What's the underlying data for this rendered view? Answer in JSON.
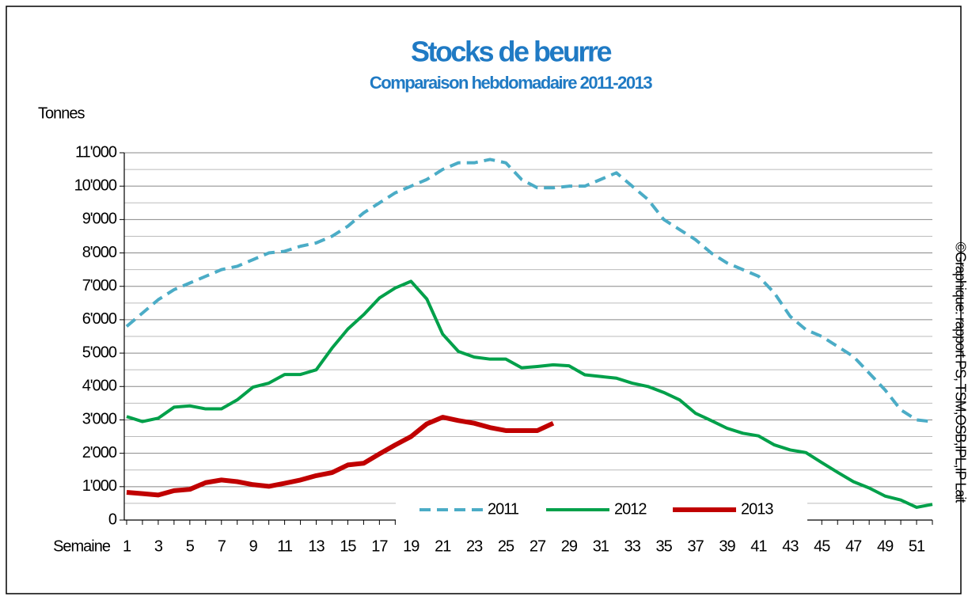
{
  "chart_data": {
    "type": "line",
    "title": "Stocks de beurre",
    "subtitle": "Comparaison hebdomadaire 2011-2013",
    "y_label": "Tonnes",
    "x_label": "Semaine",
    "source": "©Graphique: rapport PS, TSM,OSB,IPL,IP Lait",
    "x": [
      1,
      2,
      3,
      4,
      5,
      6,
      7,
      8,
      9,
      10,
      11,
      12,
      13,
      14,
      15,
      16,
      17,
      18,
      19,
      20,
      21,
      22,
      23,
      24,
      25,
      26,
      27,
      28,
      29,
      30,
      31,
      32,
      33,
      34,
      35,
      36,
      37,
      38,
      39,
      40,
      41,
      42,
      43,
      44,
      45,
      46,
      47,
      48,
      49,
      50,
      51,
      52
    ],
    "xlim": [
      1,
      52
    ],
    "xticks": [
      1,
      3,
      5,
      7,
      9,
      11,
      13,
      15,
      17,
      19,
      21,
      23,
      25,
      27,
      29,
      31,
      33,
      35,
      37,
      39,
      41,
      43,
      45,
      47,
      49,
      51
    ],
    "ylim": [
      0,
      11000
    ],
    "yticks": [
      0,
      {
        "value": 1000,
        "label": "1'000"
      },
      {
        "value": 2000,
        "label": "2'000"
      },
      {
        "value": 3000,
        "label": "3'000"
      },
      {
        "value": 4000,
        "label": "4'000"
      },
      {
        "value": 5000,
        "label": "5'000"
      },
      {
        "value": 6000,
        "label": "6'000"
      },
      {
        "value": 7000,
        "label": "7'000"
      },
      {
        "value": 8000,
        "label": "8'000"
      },
      {
        "value": 9000,
        "label": "9'000"
      },
      {
        "value": 10000,
        "label": "10'000"
      },
      {
        "value": 11000,
        "label": "11'000"
      }
    ],
    "y_minor_ticks": [
      500,
      1500,
      2500,
      3500,
      4500,
      5500,
      6500,
      7500,
      8500,
      9500,
      10500
    ],
    "grid": true,
    "legend": "bottom",
    "series": [
      {
        "name": "2011",
        "color": "#4bacc6",
        "style": "dashed",
        "values": [
          5800,
          6200,
          6600,
          6900,
          7100,
          7300,
          7500,
          7600,
          7800,
          8000,
          8050,
          8200,
          8300,
          8500,
          8800,
          9200,
          9500,
          9800,
          10000,
          10200,
          10500,
          10700,
          10700,
          10800,
          10700,
          10200,
          9950,
          9950,
          10000,
          10000,
          10200,
          10400,
          10000,
          9600,
          9000,
          8700,
          8400,
          8000,
          7700,
          7500,
          7300,
          6800,
          6100,
          5700,
          5500,
          5200,
          4900,
          4400,
          3900,
          3300,
          3000,
          2950
        ]
      },
      {
        "name": "2012",
        "color": "#00a04a",
        "style": "solid",
        "values": [
          3100,
          2950,
          3050,
          3380,
          3420,
          3330,
          3330,
          3600,
          3980,
          4100,
          4360,
          4360,
          4500,
          5150,
          5720,
          6150,
          6650,
          6950,
          7150,
          6620,
          5570,
          5050,
          4880,
          4820,
          4820,
          4560,
          4600,
          4650,
          4620,
          4350,
          4300,
          4250,
          4100,
          4000,
          3820,
          3600,
          3200,
          2980,
          2750,
          2600,
          2520,
          2250,
          2100,
          2020,
          1720,
          1430,
          1150,
          960,
          720,
          600,
          380,
          470
        ]
      },
      {
        "name": "2013",
        "color": "#c00000",
        "style": "solid",
        "values": [
          830,
          790,
          750,
          880,
          920,
          1120,
          1200,
          1150,
          1060,
          1010,
          1100,
          1200,
          1330,
          1420,
          1650,
          1700,
          1980,
          2250,
          2500,
          2880,
          3080,
          2980,
          2900,
          2770,
          2680,
          2680,
          2680,
          2900,
          null,
          null,
          null,
          null,
          null,
          null,
          null,
          null,
          null,
          null,
          null,
          null,
          null,
          null,
          null,
          null,
          null,
          null,
          null,
          null,
          null,
          null,
          null,
          null
        ]
      }
    ]
  }
}
